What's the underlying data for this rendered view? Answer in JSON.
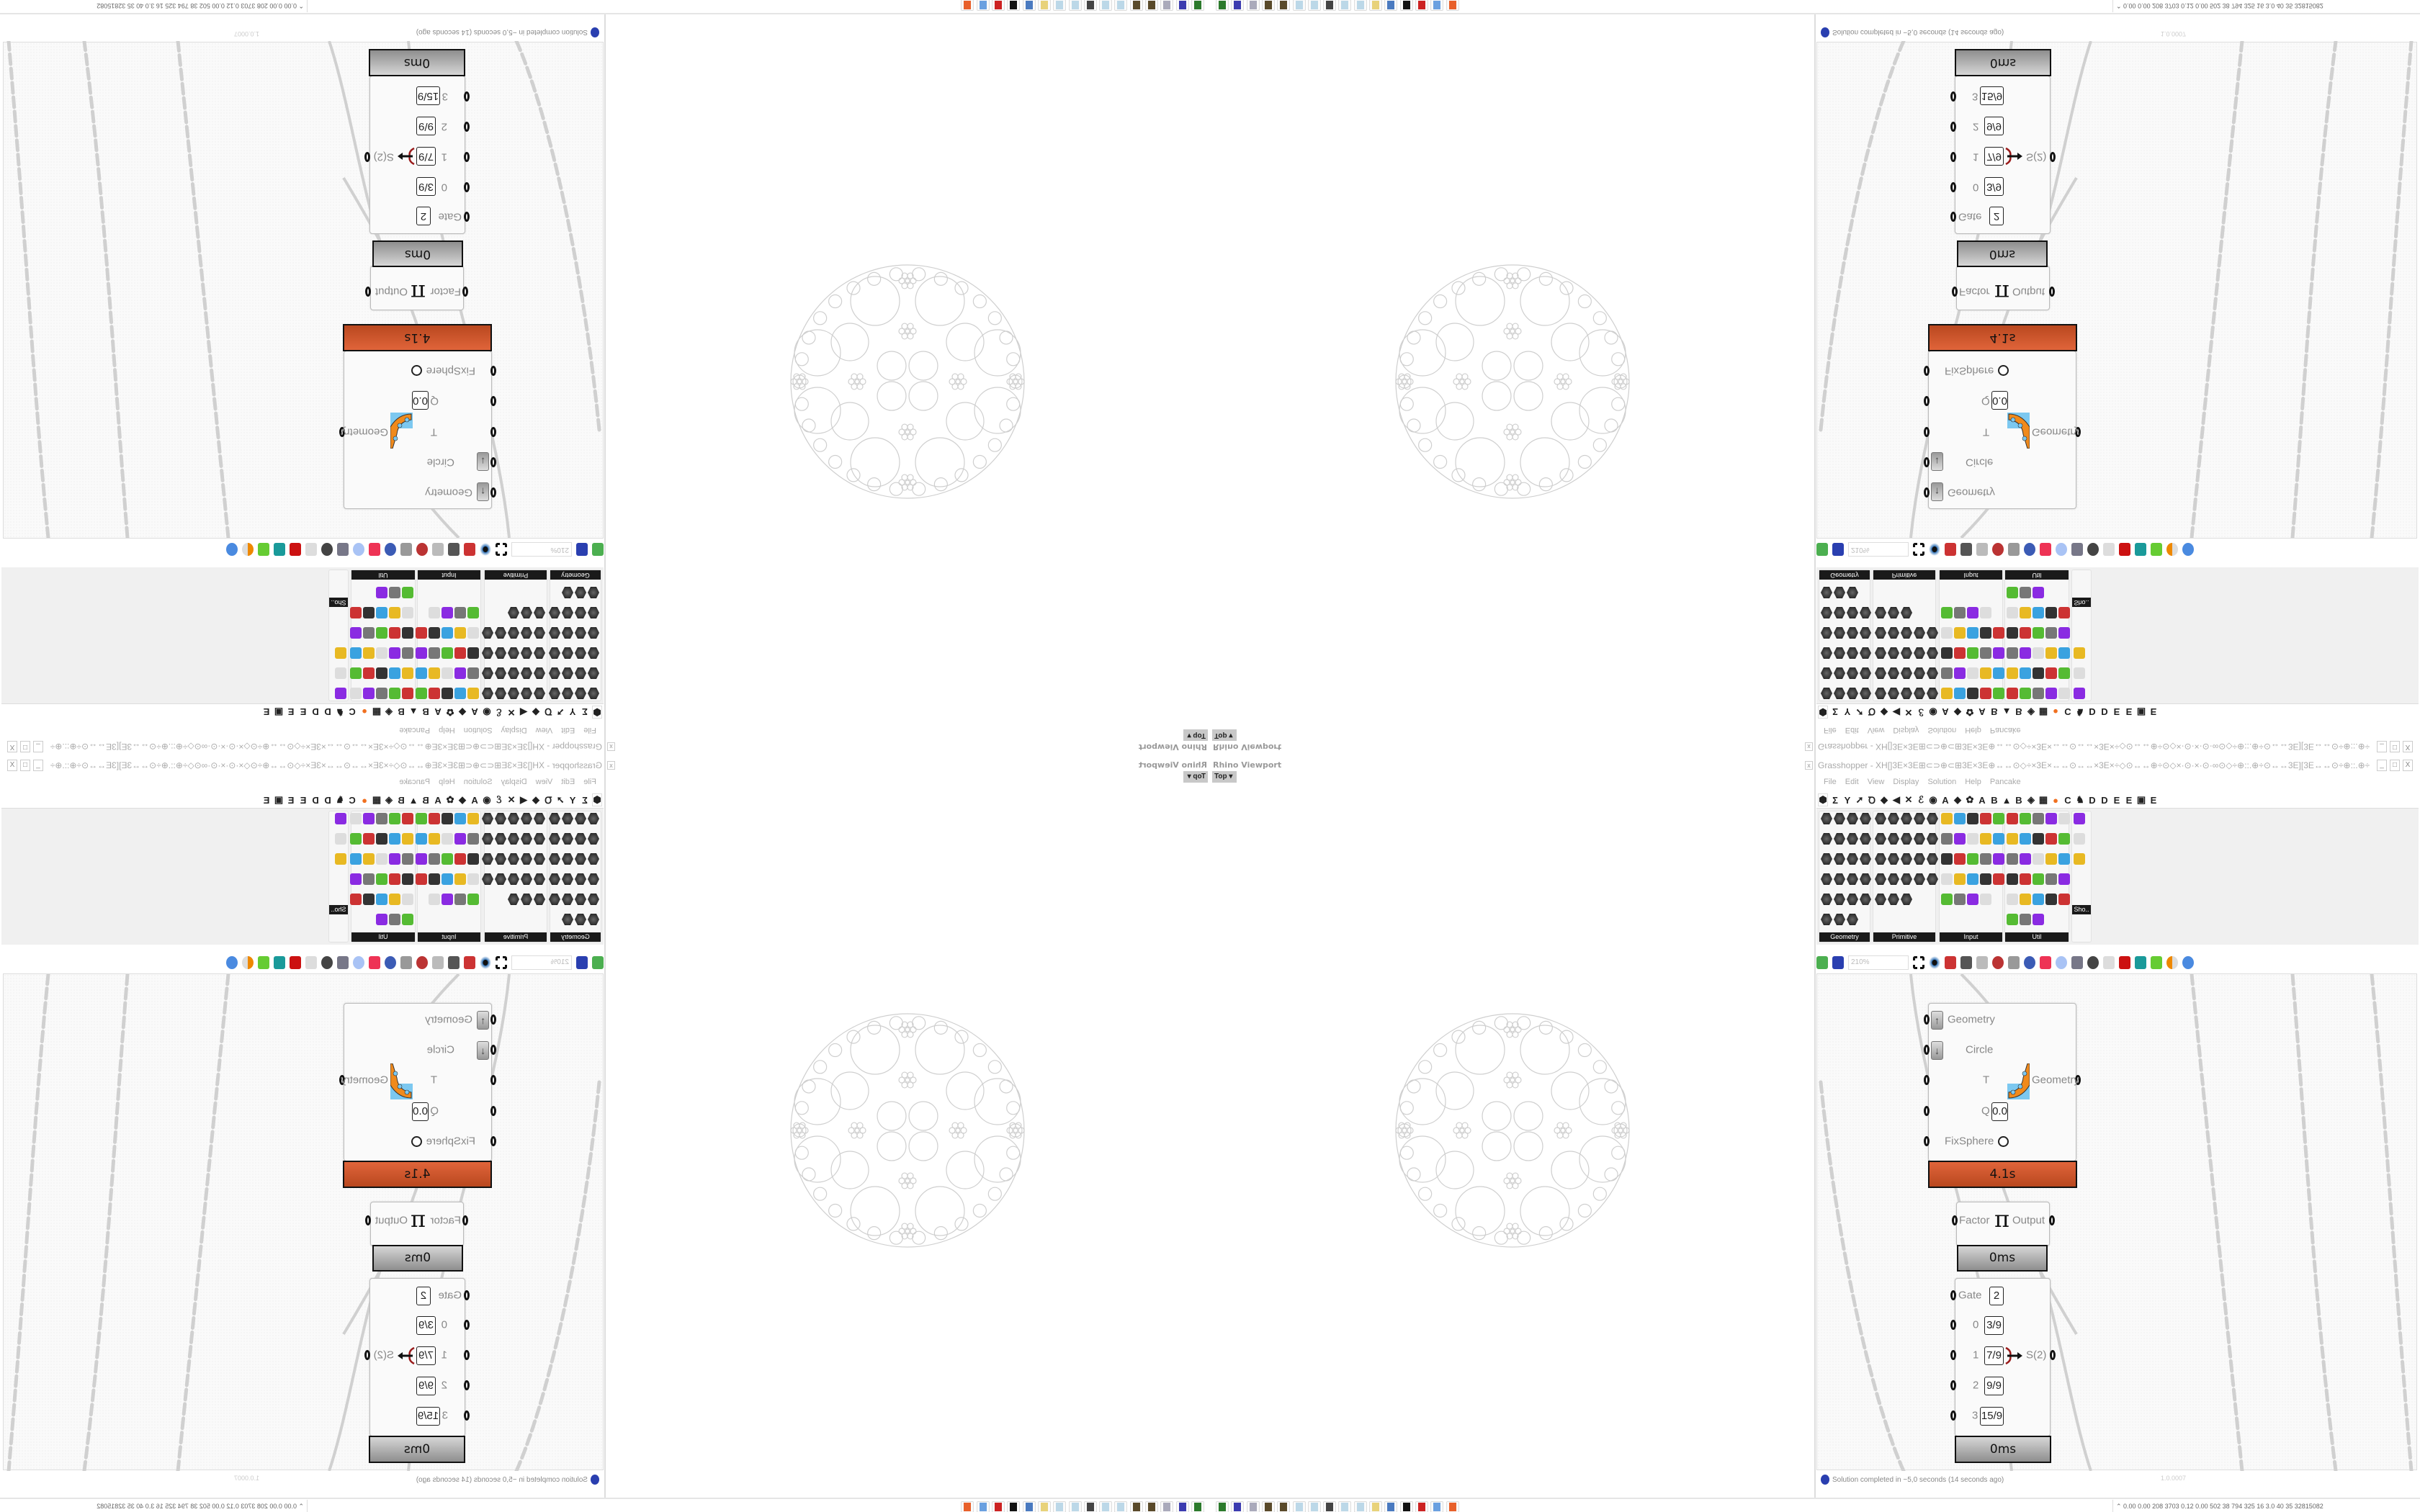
{
  "rhino": {
    "title": "Rhino Viewport",
    "view_label": "Top ▾",
    "close": "x"
  },
  "grasshopper": {
    "title": "Grasshopper - XH[]3E×3E⊞⊂⊃⊕⊂⊞3E×3E⊕↔↔⊙◇÷×3E×↔↔⊙↔↔×3E×÷◇⊙↔↔⊕÷⊙◇×·⊙·×·⊙·∞⊙◇÷⊕::.⊕÷⊙↔↔3E][3E↔↔⊙÷⊕::.⊕÷⊙◇×·⊙·×·⊙·∞⊙◇÷⊕↔↔⊙◇÷×3E×↔↔⊙↔↔",
    "window_buttons": [
      "_",
      "□",
      "X"
    ],
    "menu": [
      "File",
      "Edit",
      "View",
      "Display",
      "Solution",
      "Help",
      "Pancake"
    ],
    "tabs": [
      "⬢",
      "Σ",
      "Y",
      "➚",
      "Ꝺ",
      "◆",
      "◀",
      "✕",
      "ℰ",
      "◉",
      "A",
      "◆",
      "✿",
      "A",
      "B",
      "▲",
      "B",
      "◈",
      "▦",
      "●",
      "C",
      "♞",
      "D",
      "D",
      "E",
      "E",
      "▣",
      "E"
    ],
    "panels": [
      {
        "label": "Geometry",
        "style": "hex"
      },
      {
        "label": "Primitive",
        "style": "hex"
      },
      {
        "label": "Input",
        "style": "square"
      },
      {
        "label": "Util",
        "style": "mixed"
      },
      {
        "label": "Sho..",
        "style": "square"
      }
    ],
    "zoom_level": "210%",
    "status": "Solution completed in ~5,0 seconds (14 seconds ago)",
    "version": "1.0.0007"
  },
  "components": {
    "kangaroo": {
      "inputs": [
        "Geometry",
        "Circle",
        "T",
        "Q",
        "FixSphere"
      ],
      "q_value": "0.0",
      "output": "Geometry",
      "time": "4.1s"
    },
    "pi": {
      "input": "Factor",
      "symbol": "π",
      "output": "Output",
      "time": "0ms"
    },
    "gate": {
      "input_gate": "Gate",
      "gate_value": "2",
      "indices": [
        "0",
        "1",
        "2",
        "3"
      ],
      "values": [
        "3/9",
        "7/9",
        "9/9",
        "15/9"
      ],
      "output": "S(2)",
      "time": "0ms"
    }
  },
  "taskbar": {
    "icons": [
      "gaming-app-icon",
      "64bit-floppy-icon",
      "scroll-icon",
      "gear-app-icon",
      "gear-app-icon",
      "notepad-icon",
      "notepad-icon",
      "monitor-icon",
      "notepad-icon",
      "notepad-icon",
      "folder-icon",
      "control-panel-icon",
      "wolf-icon",
      "red-app-icon",
      "calculator-icon",
      "firefox-icon"
    ],
    "tray_stats": "0.00 0.00 208 3703 0.12 0.00 502  38  794  325  16  3.0  40  35  32815082"
  },
  "colors": {
    "accent_orange": "#d55a2f",
    "canvas_bg": "#fafafa",
    "wire": "#cfcfcf"
  }
}
